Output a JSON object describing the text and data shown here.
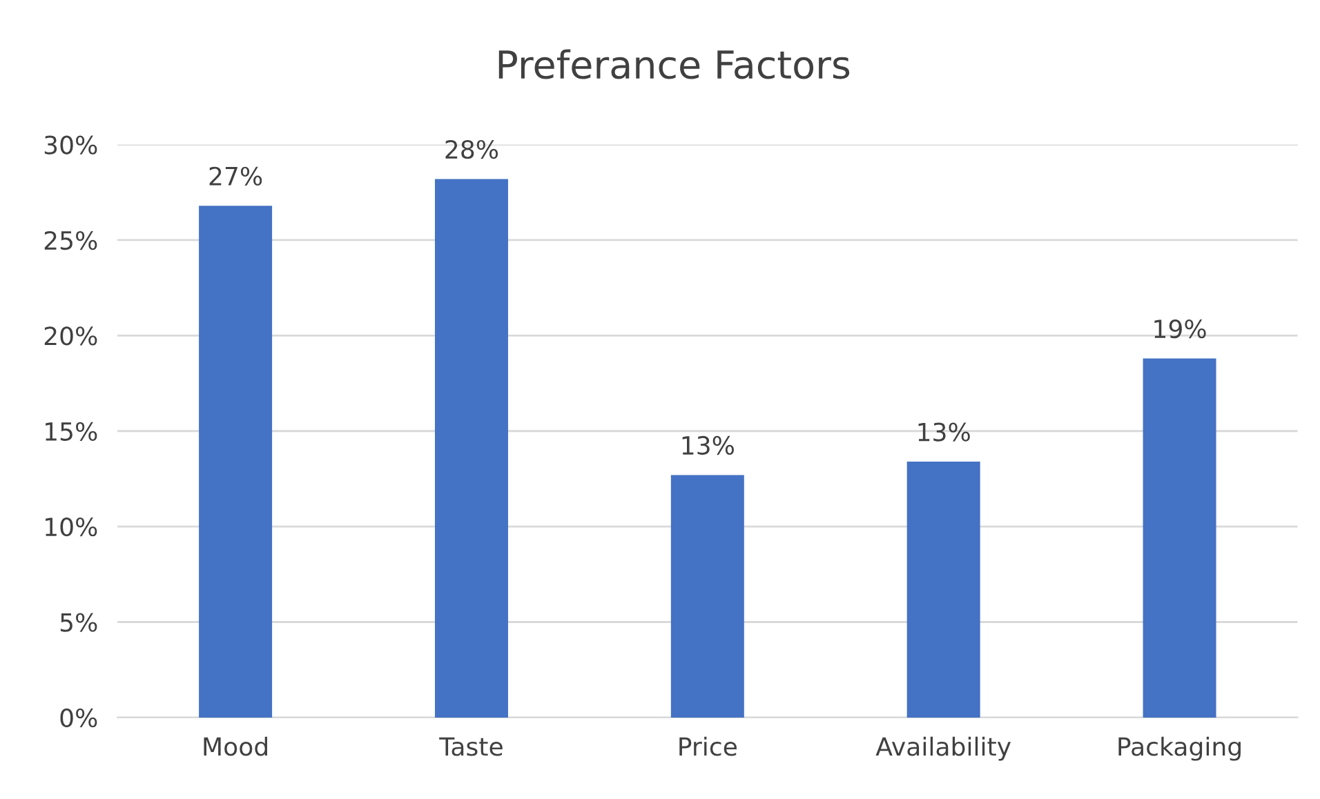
{
  "chart_data": {
    "type": "bar",
    "title": "Preferance Factors",
    "categories": [
      "Mood",
      "Taste",
      "Price",
      "Availability",
      "Packaging"
    ],
    "values": [
      26.8,
      28.2,
      12.7,
      13.4,
      18.8
    ],
    "value_labels": [
      "27%",
      "28%",
      "13%",
      "13%",
      "19%"
    ],
    "color": "#4472c4",
    "ylim": [
      0,
      30
    ],
    "yticks": [
      {
        "value": 0,
        "label": "0%"
      },
      {
        "value": 5,
        "label": "5%"
      },
      {
        "value": 10,
        "label": "10%"
      },
      {
        "value": 15,
        "label": "15%"
      },
      {
        "value": 20,
        "label": "20%"
      },
      {
        "value": 25,
        "label": "25%"
      },
      {
        "value": 30,
        "label": "30%"
      }
    ],
    "grid": "y"
  }
}
